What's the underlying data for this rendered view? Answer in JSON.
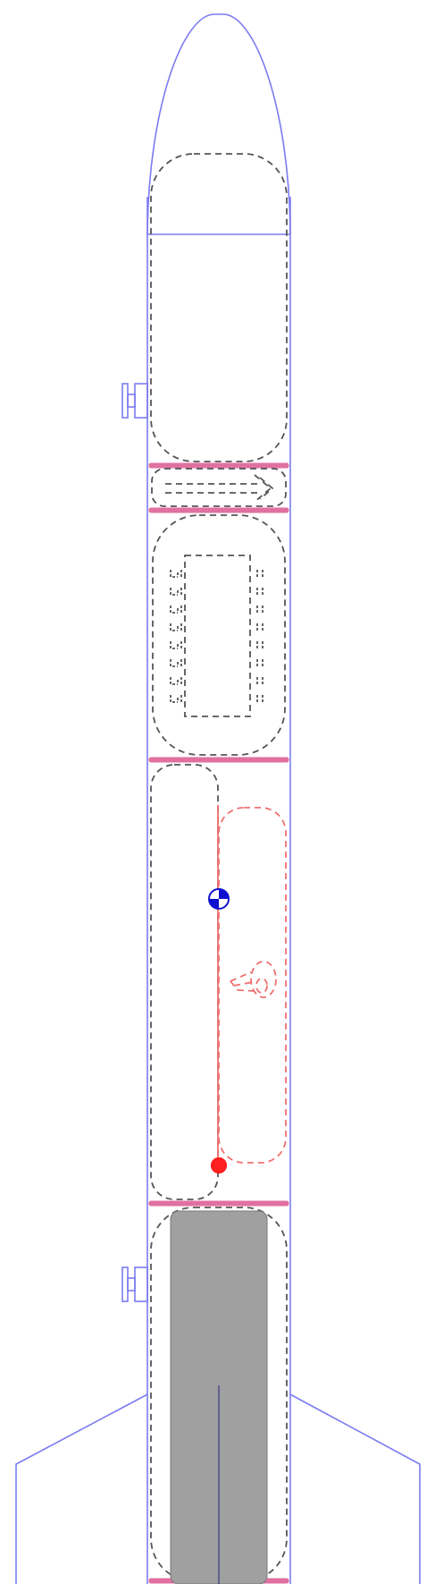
{
  "colors": {
    "body_outline": "#7b7bf0",
    "body_fill": "#ffffff",
    "internal_dash": "#555555",
    "recovery_dash": "#f07070",
    "bulkhead": "#e070a0",
    "motor_fill": "#a0a0a0",
    "motor_centerline": "#444488",
    "cg_marker": "#1010d0",
    "cp_marker": "#ff2020"
  },
  "icons": {
    "cg": "cg-balance-icon",
    "cp": "cp-dot-icon",
    "rail_button": "rail-button-icon"
  }
}
